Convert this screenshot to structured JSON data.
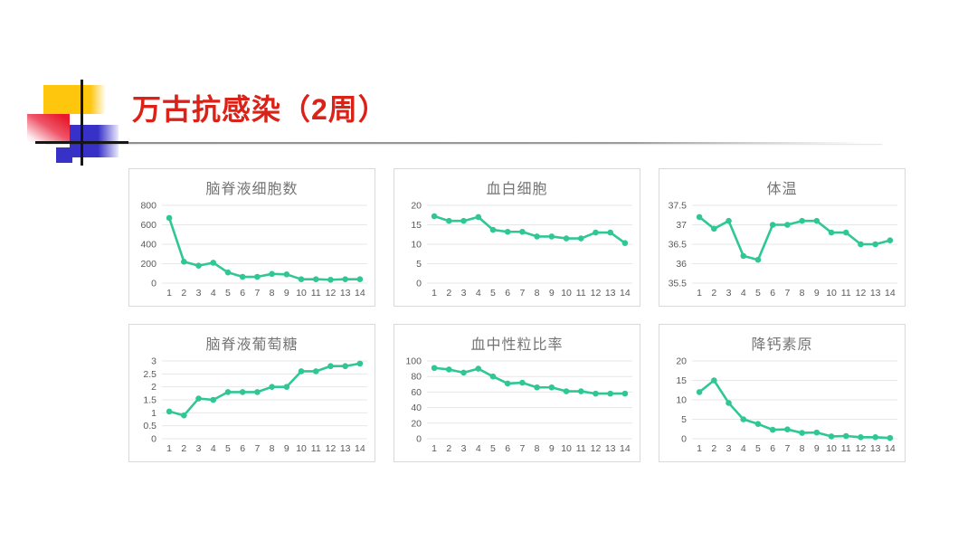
{
  "slide": {
    "title": "万古抗感染（2周）",
    "title_color": "#db2218"
  },
  "decoration": {
    "yellow": "#ffc60e",
    "red": "#e8192c",
    "blue": "#3731c8",
    "cross_lines": "#161616"
  },
  "chart_style": {
    "line_color": "#2fc795",
    "grid_color": "#e7e7e7",
    "panel_border_color": "#d9d9d9",
    "title_color": "#757575",
    "tick_color": "#595959"
  },
  "chart_data": [
    {
      "type": "line",
      "title": "脑脊液细胞数",
      "categories": [
        "1",
        "2",
        "3",
        "4",
        "5",
        "6",
        "7",
        "8",
        "9",
        "10",
        "11",
        "12",
        "13",
        "14"
      ],
      "values": [
        670,
        220,
        180,
        210,
        110,
        65,
        65,
        95,
        90,
        40,
        40,
        35,
        40,
        40
      ],
      "yticks": [
        0,
        200,
        400,
        600,
        800
      ],
      "ylim": [
        0,
        800
      ],
      "xlabel": "",
      "ylabel": "",
      "grid": true,
      "legend": "none"
    },
    {
      "type": "line",
      "title": "血白细胞",
      "categories": [
        "1",
        "2",
        "3",
        "4",
        "5",
        "6",
        "7",
        "8",
        "9",
        "10",
        "11",
        "12",
        "13",
        "14"
      ],
      "values": [
        17.2,
        16,
        16,
        17,
        13.7,
        13.2,
        13.2,
        12,
        12,
        11.5,
        11.5,
        13,
        13,
        10.3
      ],
      "yticks": [
        0,
        5,
        10,
        15,
        20
      ],
      "ylim": [
        0,
        20
      ],
      "xlabel": "",
      "ylabel": "",
      "grid": true,
      "legend": "none"
    },
    {
      "type": "line",
      "title": "体温",
      "categories": [
        "1",
        "2",
        "3",
        "4",
        "5",
        "6",
        "7",
        "8",
        "9",
        "10",
        "11",
        "12",
        "13",
        "14"
      ],
      "values": [
        37.2,
        36.9,
        37.1,
        36.2,
        36.1,
        37,
        37,
        37.1,
        37.1,
        36.8,
        36.8,
        36.5,
        36.5,
        36.6
      ],
      "yticks": [
        35.5,
        36,
        36.5,
        37,
        37.5
      ],
      "ylim": [
        35.5,
        37.5
      ],
      "xlabel": "",
      "ylabel": "",
      "grid": true,
      "legend": "none"
    },
    {
      "type": "line",
      "title": "脑脊液葡萄糖",
      "categories": [
        "1",
        "2",
        "3",
        "4",
        "5",
        "6",
        "7",
        "8",
        "9",
        "10",
        "11",
        "12",
        "13",
        "14"
      ],
      "values": [
        1.05,
        0.9,
        1.55,
        1.5,
        1.8,
        1.8,
        1.8,
        2,
        2,
        2.6,
        2.6,
        2.8,
        2.8,
        2.9
      ],
      "yticks": [
        0,
        0.5,
        1,
        1.5,
        2,
        2.5,
        3
      ],
      "ylim": [
        0,
        3
      ],
      "xlabel": "",
      "ylabel": "",
      "grid": true,
      "legend": "none"
    },
    {
      "type": "line",
      "title": "血中性粒比率",
      "categories": [
        "1",
        "2",
        "3",
        "4",
        "5",
        "6",
        "7",
        "8",
        "9",
        "10",
        "11",
        "12",
        "13",
        "14"
      ],
      "values": [
        91,
        89,
        85,
        90,
        80,
        71,
        72,
        66,
        66,
        61,
        61,
        58,
        58,
        58
      ],
      "yticks": [
        0,
        20,
        40,
        60,
        80,
        100
      ],
      "ylim": [
        0,
        100
      ],
      "xlabel": "",
      "ylabel": "",
      "grid": true,
      "legend": "none"
    },
    {
      "type": "line",
      "title": "降钙素原",
      "categories": [
        "1",
        "2",
        "3",
        "4",
        "5",
        "6",
        "7",
        "8",
        "9",
        "10",
        "11",
        "12",
        "13",
        "14"
      ],
      "values": [
        12,
        15,
        9.2,
        5,
        3.8,
        2.3,
        2.4,
        1.5,
        1.6,
        0.6,
        0.7,
        0.4,
        0.4,
        0.2
      ],
      "yticks": [
        0,
        5,
        10,
        15,
        20
      ],
      "ylim": [
        0,
        20
      ],
      "xlabel": "",
      "ylabel": "",
      "grid": true,
      "legend": "none"
    }
  ]
}
